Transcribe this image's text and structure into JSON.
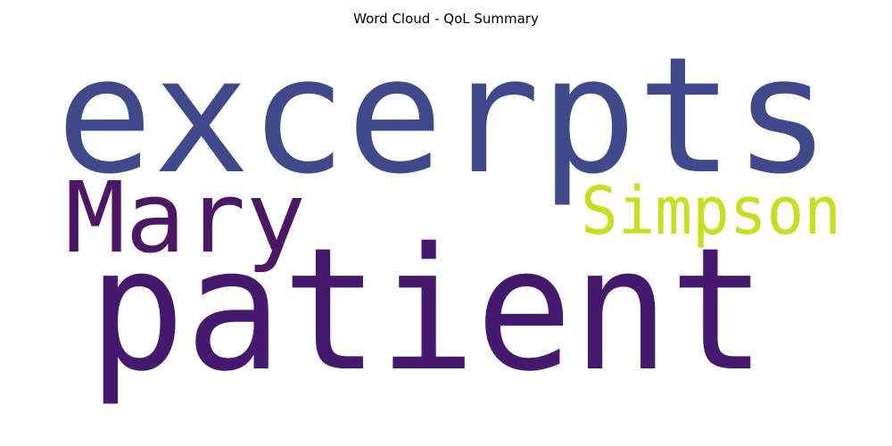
{
  "chart_data": {
    "type": "wordcloud",
    "title": "Word Cloud - QoL Summary",
    "words": [
      {
        "text": "excerpts",
        "color": "#404a8a"
      },
      {
        "text": "patient",
        "color": "#45196e"
      },
      {
        "text": "Mary",
        "color": "#4c1765"
      },
      {
        "text": "Simpson",
        "color": "#c8df21"
      }
    ]
  }
}
